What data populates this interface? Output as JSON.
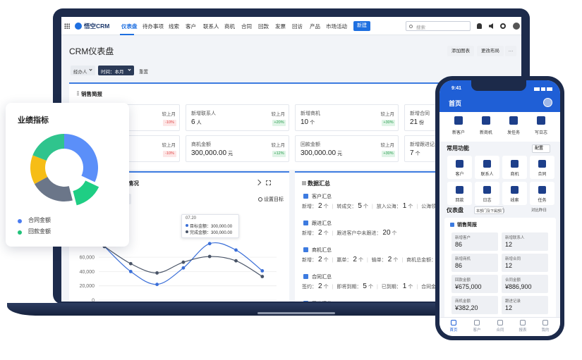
{
  "nav": {
    "brand": "悟空CRM",
    "tabs": [
      "仪表盘",
      "待办事项",
      "线索",
      "客户",
      "联系人",
      "商机",
      "合同",
      "回款",
      "发票",
      "回访",
      "产品",
      "市场活动"
    ],
    "new_button": "新建",
    "search_placeholder": "搜索"
  },
  "header": {
    "title": "CRM仪表盘",
    "buttons": [
      "添加图表",
      "更改布局",
      "···"
    ]
  },
  "filters": {
    "owner": "经办人",
    "time": "时间：本月",
    "reset": "重置"
  },
  "briefing": {
    "title": "销售简报",
    "compare_label": "较上月",
    "rows": [
      [
        {
          "change": "-10%"
        },
        {
          "label": "新增联系人",
          "value": 6,
          "unit": "人",
          "change": "+20%"
        },
        {
          "label": "新增商机",
          "value": 10,
          "unit": "个",
          "change": "+30%"
        },
        {
          "label": "新增合同",
          "value": 21,
          "unit": "份"
        }
      ],
      [
        {
          "change": "-10%"
        },
        {
          "label": "商机金额",
          "value": "300,000.00",
          "unit": "元",
          "change": "+12%"
        },
        {
          "label": "回款金额",
          "value": "300,000.00",
          "unit": "元",
          "change": "+30%"
        },
        {
          "label": "新增跟进记录",
          "value": 7,
          "unit": "个"
        }
      ]
    ]
  },
  "goal_chart": {
    "title": "情况",
    "set_goal": "设置目标",
    "ylim": [
      0,
      80000
    ],
    "yticks": [
      0,
      {
        "value": 20000,
        "label": "20,000"
      },
      {
        "value": 40000,
        "label": "40,000"
      },
      {
        "value": 60000,
        "label": "60,000"
      }
    ],
    "series": [
      {
        "color": "#3b6fd8",
        "values": [
          75000,
          40000,
          22000,
          45000,
          79000,
          70000,
          41000
        ]
      },
      {
        "color": "#4a5568",
        "values": [
          75000,
          51000,
          38000,
          53000,
          61000,
          55000,
          33000
        ]
      }
    ],
    "tooltip": {
      "date": "07.20",
      "lines": [
        "目标金额：300,000.00",
        "完成金额：300,000.00"
      ]
    }
  },
  "summary": {
    "title": "数据汇总",
    "sections": [
      {
        "title": "客户汇总",
        "items": [
          {
            "label": "新增：",
            "value": 2,
            "unit": "个"
          },
          {
            "label": "转成交：",
            "value": 5,
            "unit": "个"
          },
          {
            "label": "放入公海：",
            "value": 1,
            "unit": "个"
          },
          {
            "label": "公海领取"
          }
        ]
      },
      {
        "title": "跟进汇总",
        "items": [
          {
            "label": "新增：",
            "value": 2,
            "unit": "个"
          },
          {
            "label": "跟进客户中未跟进：",
            "value": 20,
            "unit": "个"
          }
        ]
      },
      {
        "title": "商机汇总",
        "items": [
          {
            "label": "新增：",
            "value": 2,
            "unit": "个"
          },
          {
            "label": "赢单：",
            "value": 2,
            "unit": "个"
          },
          {
            "label": "输单：",
            "value": 2,
            "unit": "个"
          },
          {
            "label": "商机总金额："
          }
        ]
      },
      {
        "title": "合同汇总",
        "items": [
          {
            "label": "签约：",
            "value": 2,
            "unit": "个"
          },
          {
            "label": "即将到期：",
            "value": 5,
            "unit": "个"
          },
          {
            "label": "已到期：",
            "value": 1,
            "unit": "个"
          },
          {
            "label": "合同金额"
          }
        ]
      },
      {
        "title": "回款汇总",
        "items": []
      }
    ]
  },
  "performance": {
    "title": "业绩指标",
    "segments": [
      {
        "color": "#5b8ff9",
        "value": 32
      },
      {
        "color": "#1fce84",
        "value": 14,
        "exploded": true
      },
      {
        "color": "#6b7689",
        "value": 21
      },
      {
        "color": "#f6bd16",
        "value": 14
      },
      {
        "color": "#2fc48d",
        "value": 19
      }
    ],
    "legend": [
      {
        "name": "合同金额",
        "color": "#4a7cf0"
      },
      {
        "name": "回款金额",
        "color": "#22c27a"
      }
    ]
  },
  "phone": {
    "time": "9:41",
    "title": "首页",
    "actions": [
      "新客户",
      "新商机",
      "发任务",
      "写日志"
    ],
    "functions_title": "常用功能",
    "config": "配置",
    "functions": [
      "客户",
      "联系人",
      "商机",
      "合同",
      "回款",
      "日志",
      "线索",
      "任务"
    ],
    "dashboard": "仪表盘",
    "scope": "本部门及下属部门",
    "compare": "对比昨日",
    "briefing_title": "销售简报",
    "cards": [
      {
        "label": "新增客户",
        "value": 86
      },
      {
        "label": "新增联系人",
        "value": 12
      },
      {
        "label": "新增商机",
        "value": 86
      },
      {
        "label": "新增合同",
        "value": 12
      },
      {
        "label": "回款金额",
        "value": "¥675,000"
      },
      {
        "label": "合同金额",
        "value": "¥886,900"
      },
      {
        "label": "商机金额",
        "value": "¥382,20"
      },
      {
        "label": "跟进记录",
        "value": 12
      }
    ],
    "tabs": [
      "首页",
      "客户",
      "合同",
      "报表",
      "我的"
    ]
  }
}
